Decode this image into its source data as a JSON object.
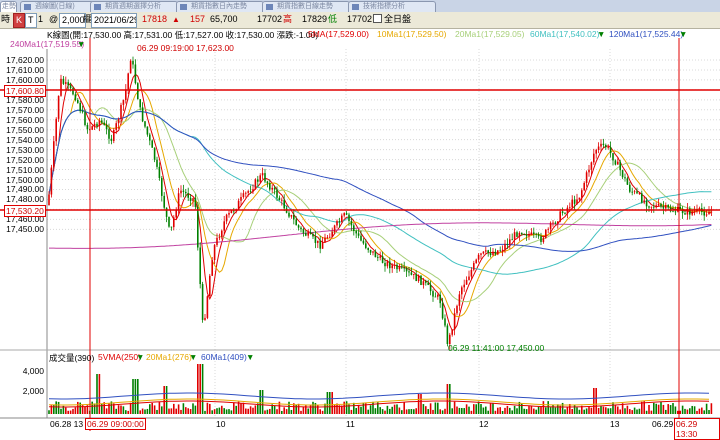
{
  "tabs": [
    {
      "label": "走勢"
    },
    {
      "label": "週線圖(日線)"
    },
    {
      "label": "期貨週期選擇分析"
    },
    {
      "label": "期貨指數日內走勢"
    },
    {
      "label": "期貨指數日線走勢"
    },
    {
      "label": "技術指標分析"
    }
  ],
  "toolbar": {
    "period_label": "時",
    "kline_label": "K",
    "interval_label": "T",
    "interval_value": "1",
    "count_prefix": "@",
    "count_value": "2,000",
    "date_prefix": "擺",
    "date_value": "2021/06/29",
    "price_a": "17818",
    "price_a_arrow": "▲",
    "change": "157",
    "volume": "65,700",
    "price_b": "17702",
    "high_label": "高",
    "price_c": "17829",
    "low_label": "低",
    "price_d": "17702",
    "full_day_label": "全日盤"
  },
  "chart_header": {
    "ohlc_text": "K線圖(開:17,530.00 高:17,531.00 低:17,527.00 收:17,530.00 漲跌:-1.00)",
    "ma5": "5MA(17,529.00)",
    "ma10": "10Ma1(17,529.50)",
    "ma20": "20Ma1(17,529.05)",
    "ma60": "60Ma1(17,540.02)",
    "ma120": "120Ma1(17,525.44)",
    "ma240": "240Ma1(17,519.55)",
    "arrow_down": "▼"
  },
  "price_axis": [
    "17,620.00",
    "17,610.00",
    "17,600.00",
    "17,590.00",
    "17,580.00",
    "17,570.00",
    "17,560.00",
    "17,550.00",
    "17,540.00",
    "17,530.00",
    "17,520.00",
    "17,510.00",
    "17,500.00",
    "17,490.00",
    "17,480.00",
    "17,470.00",
    "17,460.00",
    "17,450.00"
  ],
  "markers": {
    "high_note": "06.29 09:19:00 17,623.00",
    "low_note": "06.29 11:41:00 17,450.00",
    "hline_top": "17,600.80",
    "hline_mid": "17,530.20"
  },
  "volume_header": {
    "title": "成交量(390)",
    "vma5": "5VMA(250)",
    "vma20": "20Ma1(276)",
    "vma60": "60Ma1(409)"
  },
  "volume_axis": [
    "4,000",
    "2,000"
  ],
  "x_axis": {
    "left": "06.28 13",
    "cursor_left": "06.29 09:00:00",
    "ticks": [
      "10",
      "11",
      "12",
      "13"
    ],
    "right_prefix": "06.29",
    "cursor_right": "06.29 13:30"
  },
  "colors": {
    "up": "#e00000",
    "down": "#008000",
    "ma5": "#e00000",
    "ma10": "#e6a800",
    "ma20": "#a8d07a",
    "ma60": "#40c0c0",
    "ma120": "#3050c0",
    "ma240": "#c040a0"
  }
}
